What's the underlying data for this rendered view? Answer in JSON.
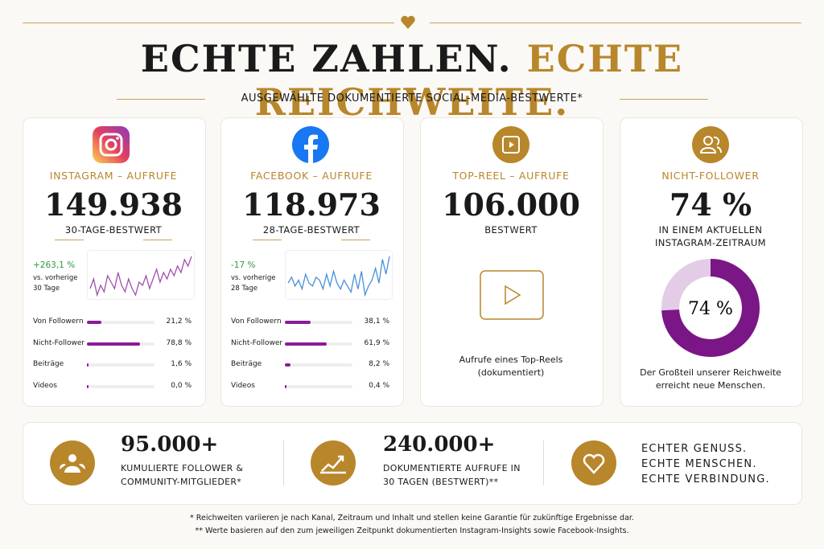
{
  "header": {
    "title_part1": "ECHTE ZAHLEN.",
    "title_part2": "ECHTE REICHWEITE.",
    "subtitle": "AUSGEWÄHLTE DOKUMENTIERTE SOCIAL-MEDIA-BESTWERTE*"
  },
  "cards": [
    {
      "label": "INSTAGRAM – AUFRUFE",
      "value": "149.938",
      "caption": "30-TAGE-BESTWERT",
      "change": "+263,1 %",
      "change_note": "vs. vorherige 30 Tage",
      "change_color": "#2e9a3e",
      "sparkline_color": "#a04fb0",
      "sparkline": [
        30,
        45,
        20,
        35,
        25,
        50,
        40,
        30,
        55,
        35,
        25,
        45,
        30,
        20,
        40,
        35,
        50,
        30,
        45,
        60,
        40,
        55,
        45,
        60,
        50,
        65,
        55,
        75,
        65,
        80
      ],
      "breakdown": [
        {
          "name": "Von Followern",
          "value": 21.2,
          "label": "21,2 %"
        },
        {
          "name": "Nicht-Follower",
          "value": 78.8,
          "label": "78,8 %"
        },
        {
          "name": "Beiträge",
          "value": 1.6,
          "label": "1,6 %"
        },
        {
          "name": "Videos",
          "value": 0.0,
          "label": "0,0 %"
        }
      ]
    },
    {
      "label": "FACEBOOK – AUFRUFE",
      "value": "118.973",
      "caption": "28-TAGE-BESTWERT",
      "change": "-17 %",
      "change_note": "vs. vorherige 28 Tage",
      "change_color": "#2e9a3e",
      "sparkline_color": "#4a90d9",
      "sparkline": [
        40,
        50,
        35,
        45,
        30,
        55,
        40,
        35,
        50,
        45,
        30,
        55,
        35,
        60,
        40,
        30,
        45,
        35,
        25,
        55,
        30,
        60,
        20,
        35,
        45,
        65,
        40,
        80,
        55,
        85
      ],
      "breakdown": [
        {
          "name": "Von Followern",
          "value": 38.1,
          "label": "38,1 %"
        },
        {
          "name": "Nicht-Follower",
          "value": 61.9,
          "label": "61,9 %"
        },
        {
          "name": "Beiträge",
          "value": 8.2,
          "label": "8,2 %"
        },
        {
          "name": "Videos",
          "value": 0.4,
          "label": "0,4 %"
        }
      ]
    },
    {
      "label": "TOP-REEL – AUFRUFE",
      "value": "106.000",
      "caption": "BESTWERT",
      "description": "Aufrufe eines Top-Reels (dokumentiert)"
    },
    {
      "label": "NICHT-FOLLOWER",
      "value": "74 %",
      "caption": "IN EINEM AKTUELLEN INSTAGRAM-ZEITRAUM",
      "donut": {
        "value": 74,
        "label": "74 %"
      },
      "description": "Der Großteil unserer Reichweite erreicht neue Menschen."
    }
  ],
  "stats": [
    {
      "value": "95.000+",
      "text": "KUMULIERTE FOLLOWER & COMMUNITY-MITGLIEDER*"
    },
    {
      "value": "240.000+",
      "text": "DOKUMENTIERTE AUFRUFE IN 30 TAGEN (BESTWERT)**"
    }
  ],
  "motto": [
    "ECHTER GENUSS.",
    "ECHTE MENSCHEN.",
    "ECHTE VERBINDUNG."
  ],
  "footnotes": [
    "* Reichweiten variieren je nach Kanal, Zeitraum und Inhalt und stellen keine Garantie für zukünftige Ergebnisse dar.",
    "** Werte basieren auf den zum jeweiligen Zeitpunkt dokumentierten Instagram-Insights sowie Facebook-Insights."
  ]
}
